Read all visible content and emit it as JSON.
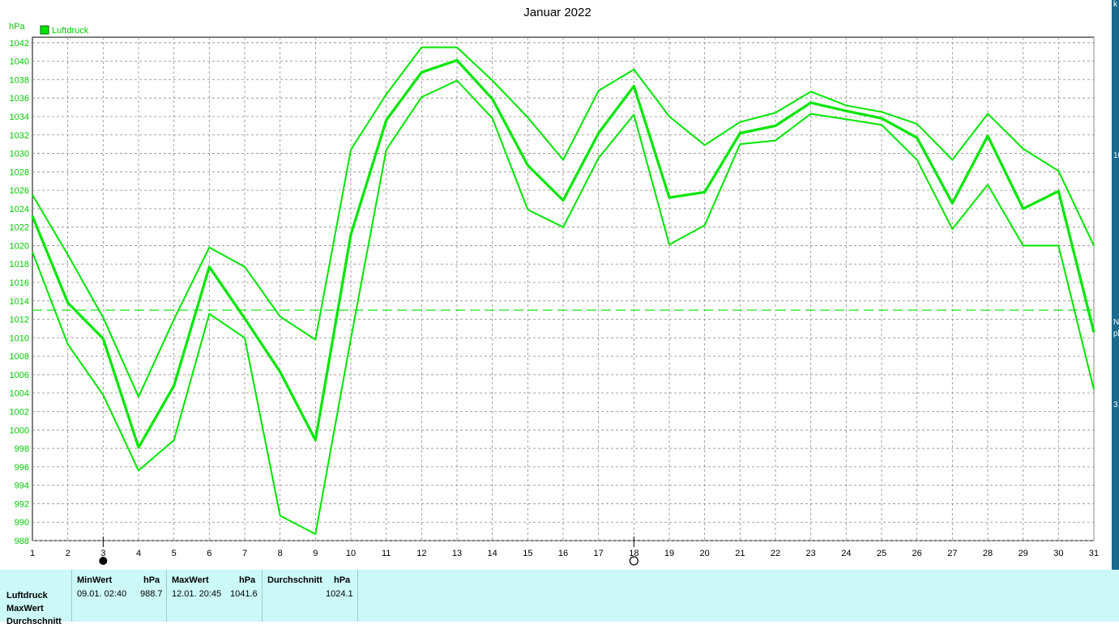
{
  "chart_data": {
    "type": "line",
    "title": "Januar 2022",
    "ylabel": "hPa",
    "ylim": [
      988,
      1042.6
    ],
    "ytick_step": 2,
    "legend": [
      "Luftdruck"
    ],
    "legend_position": "top-left",
    "grid": true,
    "x_ticks": [
      "1",
      "2",
      "3",
      "4",
      "5",
      "6",
      "7",
      "8",
      "9",
      "10",
      "11",
      "12",
      "13",
      "14",
      "15",
      "16",
      "17",
      "18",
      "19",
      "20",
      "21",
      "22",
      "23",
      "24",
      "25",
      "26",
      "27",
      "28",
      "29",
      "30",
      "31"
    ],
    "x": [
      1,
      2,
      3,
      4,
      5,
      6,
      7,
      8,
      9,
      10,
      11,
      12,
      13,
      14,
      15,
      16,
      17,
      18,
      19,
      20,
      21,
      22,
      23,
      24,
      25,
      26,
      27,
      28,
      29,
      30,
      31
    ],
    "series": [
      {
        "name": "Luftdruck",
        "role": "mean",
        "color": "#00e600",
        "values": [
          1023.2,
          1013.8,
          1009.9,
          998.1,
          1004.8,
          1017.7,
          1012.1,
          1006.3,
          998.9,
          1021.2,
          1033.6,
          1038.8,
          1040.1,
          1035.9,
          1028.7,
          1024.9,
          1032.2,
          1037.3,
          1025.2,
          1025.8,
          1032.2,
          1033.0,
          1035.5,
          1034.6,
          1033.8,
          1031.7,
          1024.6,
          1031.9,
          1024.0,
          1025.9,
          1010.6
        ]
      },
      {
        "role": "max",
        "color": "#00e600",
        "values": [
          1025.5,
          1019.0,
          1012.2,
          1003.6,
          1012.0,
          1019.8,
          1017.7,
          1012.3,
          1009.8,
          1030.4,
          1036.4,
          1041.5,
          1041.5,
          1037.9,
          1033.9,
          1029.3,
          1036.8,
          1039.1,
          1034.0,
          1030.9,
          1033.4,
          1034.4,
          1036.7,
          1035.2,
          1034.5,
          1033.2,
          1029.3,
          1034.3,
          1030.5,
          1028.1,
          1020.0
        ]
      },
      {
        "role": "min",
        "color": "#00e600",
        "values": [
          1019.3,
          1009.3,
          1003.8,
          995.6,
          998.9,
          1012.6,
          1010.0,
          990.7,
          988.7,
          1009.9,
          1030.4,
          1036.1,
          1037.9,
          1033.8,
          1023.9,
          1022.0,
          1029.5,
          1034.2,
          1020.1,
          1022.2,
          1031.0,
          1031.4,
          1034.3,
          1033.7,
          1033.1,
          1029.3,
          1021.8,
          1026.6,
          1020.0,
          1020.0,
          1004.4
        ]
      }
    ],
    "average_line": 1013.0,
    "moon_markers": [
      {
        "day": 3,
        "phase": "new"
      },
      {
        "day": 18,
        "phase": "full"
      }
    ]
  },
  "stats": {
    "labels": [
      "Luftdruck",
      "MaxWert",
      "Durchschnitt"
    ],
    "min": {
      "head": "MinWert",
      "unit": "hPa",
      "time": "09.01.  02:40",
      "value": "988.7"
    },
    "max": {
      "head": "MaxWert",
      "unit": "hPa",
      "time": "12.01.  20:45",
      "value": "1041.6"
    },
    "avg": {
      "head": "Durchschnitt",
      "unit": "hPa",
      "value": "1024.1"
    }
  },
  "colors": {
    "series": "#00e600",
    "grid": "#8c8c8c",
    "stats_bg": "#ccf8f8",
    "side_strip": "#1b6a8c"
  },
  "side_fragments": [
    "k",
    "10",
    "N",
    "pl",
    "3"
  ]
}
